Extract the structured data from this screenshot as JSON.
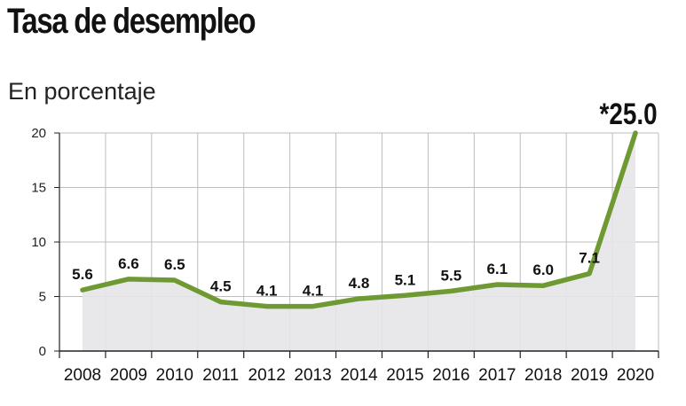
{
  "header": {
    "title": "Tasa de desempleo",
    "subtitle": "En porcentaje"
  },
  "colors": {
    "line": "#6f9a33",
    "area": "#e6e6e8",
    "grid": "#bdbdbd",
    "axis": "#222222"
  },
  "chart_data": {
    "type": "area",
    "title": "Tasa de desempleo",
    "subtitle": "En porcentaje",
    "xlabel": "",
    "ylabel": "",
    "ylim": [
      0,
      20
    ],
    "yticks": [
      0,
      5,
      10,
      15,
      20
    ],
    "grid": true,
    "categories": [
      "2008",
      "2009",
      "2010",
      "2011",
      "2012",
      "2013",
      "2014",
      "2015",
      "2016",
      "2017",
      "2018",
      "2019",
      "2020"
    ],
    "values": [
      5.6,
      6.6,
      6.5,
      4.5,
      4.1,
      4.1,
      4.8,
      5.1,
      5.5,
      6.1,
      6.0,
      7.1,
      25.0
    ],
    "data_labels": [
      "5.6",
      "6.6",
      "6.5",
      "4.5",
      "4.1",
      "4.1",
      "4.8",
      "5.1",
      "5.5",
      "6.1",
      "6.0",
      "7.1",
      "*25.0"
    ]
  }
}
